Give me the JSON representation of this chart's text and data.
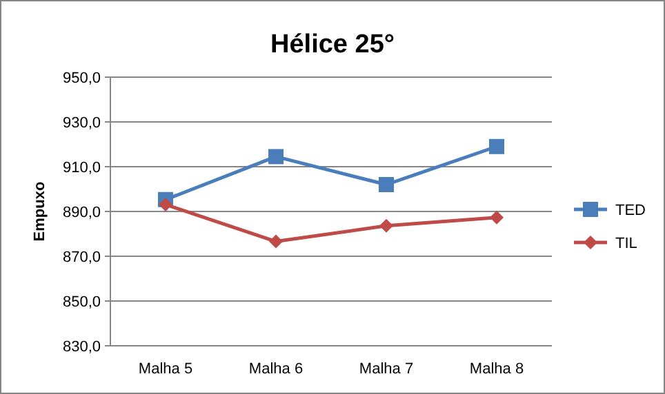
{
  "chart_data": {
    "type": "line",
    "title": "Hélice 25°",
    "ylabel": "Empuxo",
    "categories": [
      "Malha 5",
      "Malha 6",
      "Malha 7",
      "Malha 8"
    ],
    "series": [
      {
        "name": "TED",
        "color": "#4a7ebb",
        "values": [
          895.3,
          914.5,
          902.0,
          919.0
        ],
        "marker": "square"
      },
      {
        "name": "TIL",
        "color": "#be4b48",
        "values": [
          893.1,
          876.6,
          883.6,
          887.3
        ],
        "marker": "diamond"
      }
    ],
    "ylim": [
      830,
      950
    ],
    "yticks": [
      {
        "value": 830,
        "label": "830,0"
      },
      {
        "value": 850,
        "label": "850,0"
      },
      {
        "value": 870,
        "label": "870,0"
      },
      {
        "value": 890,
        "label": "890,0"
      },
      {
        "value": 910,
        "label": "910,0"
      },
      {
        "value": 930,
        "label": "930,0"
      },
      {
        "value": 950,
        "label": "950,0"
      }
    ],
    "grid": "y",
    "legend": "right"
  }
}
